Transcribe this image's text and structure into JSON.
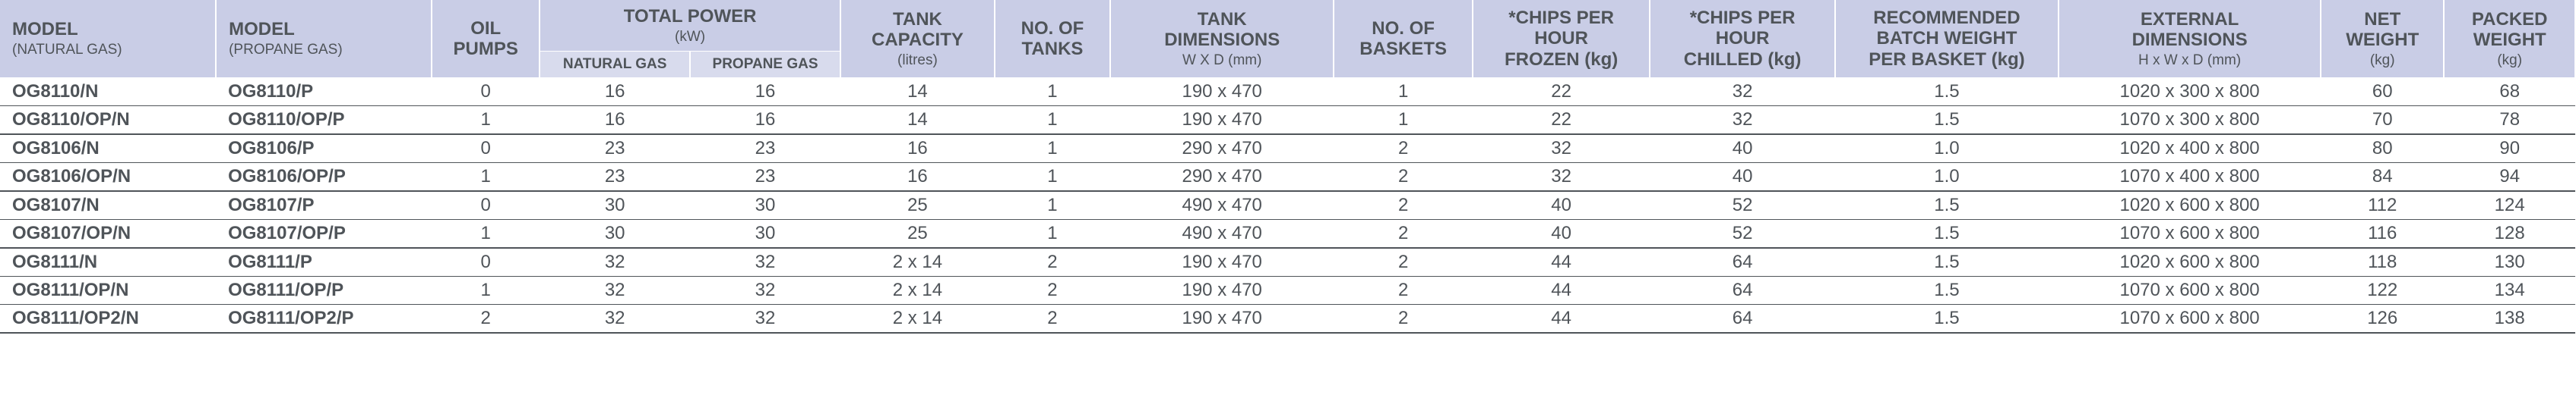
{
  "headers": {
    "model_n": {
      "main": "MODEL",
      "sub": "(NATURAL GAS)"
    },
    "model_p": {
      "main": "MODEL",
      "sub": "(PROPANE GAS)"
    },
    "oil_pumps": {
      "main": "OIL",
      "sub": "PUMPS"
    },
    "total_power": {
      "main": "TOTAL POWER",
      "sub": "(kW)"
    },
    "tp_natural": "NATURAL GAS",
    "tp_propane": "PROPANE GAS",
    "tank_capacity": {
      "main": "TANK",
      "sub": "CAPACITY",
      "sub2": "(litres)"
    },
    "no_tanks": {
      "main": "NO. OF",
      "sub": "TANKS"
    },
    "tank_dims": {
      "main": "TANK",
      "sub": "DIMENSIONS",
      "sub2": "W X D (mm)"
    },
    "no_baskets": {
      "main": "NO. OF",
      "sub": "BASKETS"
    },
    "cph_frozen": {
      "main": "*CHIPS PER",
      "sub": "HOUR",
      "sub2": "FROZEN (kg)"
    },
    "cph_chilled": {
      "main": "*CHIPS PER",
      "sub": "HOUR",
      "sub2": "CHILLED (kg)"
    },
    "batch": {
      "main": "RECOMMENDED",
      "sub": "BATCH WEIGHT",
      "sub2": "PER BASKET (kg)"
    },
    "ext_dims": {
      "main": "EXTERNAL",
      "sub": "DIMENSIONS",
      "sub2": "H x W x D (mm)"
    },
    "net_w": {
      "main": "NET",
      "sub": "WEIGHT",
      "sub2": "(kg)"
    },
    "packed_w": {
      "main": "PACKED",
      "sub": "WEIGHT",
      "sub2": "(kg)"
    }
  },
  "rows": [
    {
      "model_n": "OG8110/N",
      "model_p": "OG8110/P",
      "oil": "0",
      "pn": "16",
      "pp": "16",
      "tcap": "14",
      "ntanks": "1",
      "tdim": "190 x 470",
      "nbask": "1",
      "cphf": "22",
      "cphc": "32",
      "batch": "1.5",
      "ext": "1020 x 300 x 800",
      "netw": "60",
      "packw": "68",
      "group": "a",
      "mid": true
    },
    {
      "model_n": "OG8110/OP/N",
      "model_p": "OG8110/OP/P",
      "oil": "1",
      "pn": "16",
      "pp": "16",
      "tcap": "14",
      "ntanks": "1",
      "tdim": "190 x 470",
      "nbask": "1",
      "cphf": "22",
      "cphc": "32",
      "batch": "1.5",
      "ext": "1070 x 300 x 800",
      "netw": "70",
      "packw": "78",
      "group": "a",
      "mid": false
    },
    {
      "model_n": "OG8106/N",
      "model_p": "OG8106/P",
      "oil": "0",
      "pn": "23",
      "pp": "23",
      "tcap": "16",
      "ntanks": "1",
      "tdim": "290 x 470",
      "nbask": "2",
      "cphf": "32",
      "cphc": "40",
      "batch": "1.0",
      "ext": "1020 x 400 x 800",
      "netw": "80",
      "packw": "90",
      "group": "b",
      "mid": true
    },
    {
      "model_n": "OG8106/OP/N",
      "model_p": "OG8106/OP/P",
      "oil": "1",
      "pn": "23",
      "pp": "23",
      "tcap": "16",
      "ntanks": "1",
      "tdim": "290 x 470",
      "nbask": "2",
      "cphf": "32",
      "cphc": "40",
      "batch": "1.0",
      "ext": "1070 x 400 x 800",
      "netw": "84",
      "packw": "94",
      "group": "b",
      "mid": false
    },
    {
      "model_n": "OG8107/N",
      "model_p": "OG8107/P",
      "oil": "0",
      "pn": "30",
      "pp": "30",
      "tcap": "25",
      "ntanks": "1",
      "tdim": "490 x 470",
      "nbask": "2",
      "cphf": "40",
      "cphc": "52",
      "batch": "1.5",
      "ext": "1020 x 600 x 800",
      "netw": "112",
      "packw": "124",
      "group": "c",
      "mid": true
    },
    {
      "model_n": "OG8107/OP/N",
      "model_p": "OG8107/OP/P",
      "oil": "1",
      "pn": "30",
      "pp": "30",
      "tcap": "25",
      "ntanks": "1",
      "tdim": "490 x 470",
      "nbask": "2",
      "cphf": "40",
      "cphc": "52",
      "batch": "1.5",
      "ext": "1070 x 600 x 800",
      "netw": "116",
      "packw": "128",
      "group": "c",
      "mid": false
    },
    {
      "model_n": "OG8111/N",
      "model_p": "OG8111/P",
      "oil": "0",
      "pn": "32",
      "pp": "32",
      "tcap": "2 x 14",
      "ntanks": "2",
      "tdim": "190 x 470",
      "nbask": "2",
      "cphf": "44",
      "cphc": "64",
      "batch": "1.5",
      "ext": "1020 x 600 x 800",
      "netw": "118",
      "packw": "130",
      "group": "d",
      "mid": true
    },
    {
      "model_n": "OG8111/OP/N",
      "model_p": "OG8111/OP/P",
      "oil": "1",
      "pn": "32",
      "pp": "32",
      "tcap": "2 x 14",
      "ntanks": "2",
      "tdim": "190 x 470",
      "nbask": "2",
      "cphf": "44",
      "cphc": "64",
      "batch": "1.5",
      "ext": "1070 x 600 x 800",
      "netw": "122",
      "packw": "134",
      "group": "d",
      "mid": true
    },
    {
      "model_n": "OG8111/OP2/N",
      "model_p": "OG8111/OP2/P",
      "oil": "2",
      "pn": "32",
      "pp": "32",
      "tcap": "2 x 14",
      "ntanks": "2",
      "tdim": "190 x 470",
      "nbask": "2",
      "cphf": "44",
      "cphc": "64",
      "batch": "1.5",
      "ext": "1070 x 600 x 800",
      "netw": "126",
      "packw": "138",
      "group": "d",
      "mid": false
    }
  ],
  "colors": {
    "header_bg": "#c9cde6",
    "subheader_bg": "#d8dbed",
    "text": "#4f5459",
    "rule": "#4f5459",
    "midrule": "#9aa0a6"
  }
}
